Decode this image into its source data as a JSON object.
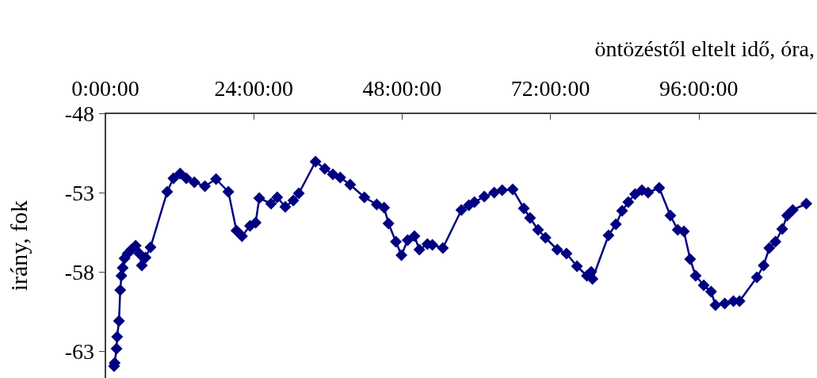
{
  "chart_data": {
    "type": "line",
    "xlabel": "öntözéstől eltelt idő, óra,",
    "ylabel": "irány, fok",
    "xlim": [
      0,
      115
    ],
    "xticks": [
      {
        "value": 0,
        "label": "0:00:00"
      },
      {
        "value": 24,
        "label": "24:00:00"
      },
      {
        "value": 48,
        "label": "48:00:00"
      },
      {
        "value": 72,
        "label": "72:00:00"
      },
      {
        "value": 96,
        "label": "96:00:00"
      }
    ],
    "ylim": [
      -64.7,
      -48
    ],
    "yticks": [
      -48,
      -53,
      -58,
      -63
    ],
    "grid": false,
    "marker": "diamond",
    "line_style": "solid",
    "x": [
      1.4,
      1.5,
      1.8,
      1.9,
      2.2,
      2.4,
      2.6,
      2.8,
      3.1,
      3.6,
      4.2,
      4.9,
      5.5,
      5.9,
      6.5,
      7.3,
      10.0,
      11.0,
      12.1,
      13.1,
      14.4,
      16.1,
      17.9,
      19.9,
      21.2,
      22.1,
      23.4,
      24.3,
      24.9,
      26.8,
      27.8,
      29.1,
      30.4,
      31.3,
      34.0,
      35.5,
      36.8,
      38.0,
      39.6,
      41.9,
      43.9,
      45.1,
      45.8,
      47.0,
      47.9,
      48.9,
      50.0,
      50.8,
      52.1,
      52.9,
      54.6,
      57.6,
      58.8,
      59.7,
      61.3,
      62.9,
      64.2,
      65.9,
      67.7,
      68.7,
      70.0,
      71.2,
      73.1,
      74.6,
      76.3,
      77.9,
      78.6,
      78.8,
      81.4,
      82.6,
      83.6,
      84.6,
      85.7,
      86.8,
      87.8,
      89.6,
      91.4,
      92.6,
      93.6,
      94.6,
      95.5,
      96.8,
      98.0,
      98.7,
      100.2,
      101.6,
      102.6,
      105.4,
      106.5,
      107.4,
      108.4,
      109.5,
      110.3,
      111.2,
      113.4
    ],
    "series": [
      {
        "color": "#000080",
        "values": [
          -63.95,
          -63.75,
          -62.85,
          -62.1,
          -61.1,
          -59.15,
          -58.25,
          -57.75,
          -57.15,
          -56.85,
          -56.6,
          -56.35,
          -56.85,
          -57.6,
          -57.1,
          -56.45,
          -52.95,
          -52.1,
          -51.8,
          -52.1,
          -52.35,
          -52.6,
          -52.15,
          -52.95,
          -55.4,
          -55.75,
          -55.1,
          -54.9,
          -53.35,
          -53.7,
          -53.3,
          -53.9,
          -53.5,
          -53.05,
          -51.05,
          -51.5,
          -51.85,
          -52.05,
          -52.5,
          -53.3,
          -53.75,
          -53.95,
          -54.95,
          -56.1,
          -56.95,
          -56.0,
          -55.75,
          -56.6,
          -56.25,
          -56.3,
          -56.5,
          -54.1,
          -53.8,
          -53.6,
          -53.25,
          -53.0,
          -52.85,
          -52.8,
          -54.0,
          -54.6,
          -55.35,
          -55.85,
          -56.6,
          -56.85,
          -57.65,
          -58.25,
          -58.0,
          -58.45,
          -55.7,
          -55.0,
          -54.15,
          -53.6,
          -53.1,
          -52.85,
          -53.0,
          -52.7,
          -54.45,
          -55.35,
          -55.45,
          -57.2,
          -58.25,
          -58.85,
          -59.25,
          -60.1,
          -60.0,
          -59.85,
          -59.85,
          -58.35,
          -57.6,
          -56.5,
          -56.1,
          -55.3,
          -54.45,
          -54.1,
          -53.7
        ]
      }
    ]
  }
}
